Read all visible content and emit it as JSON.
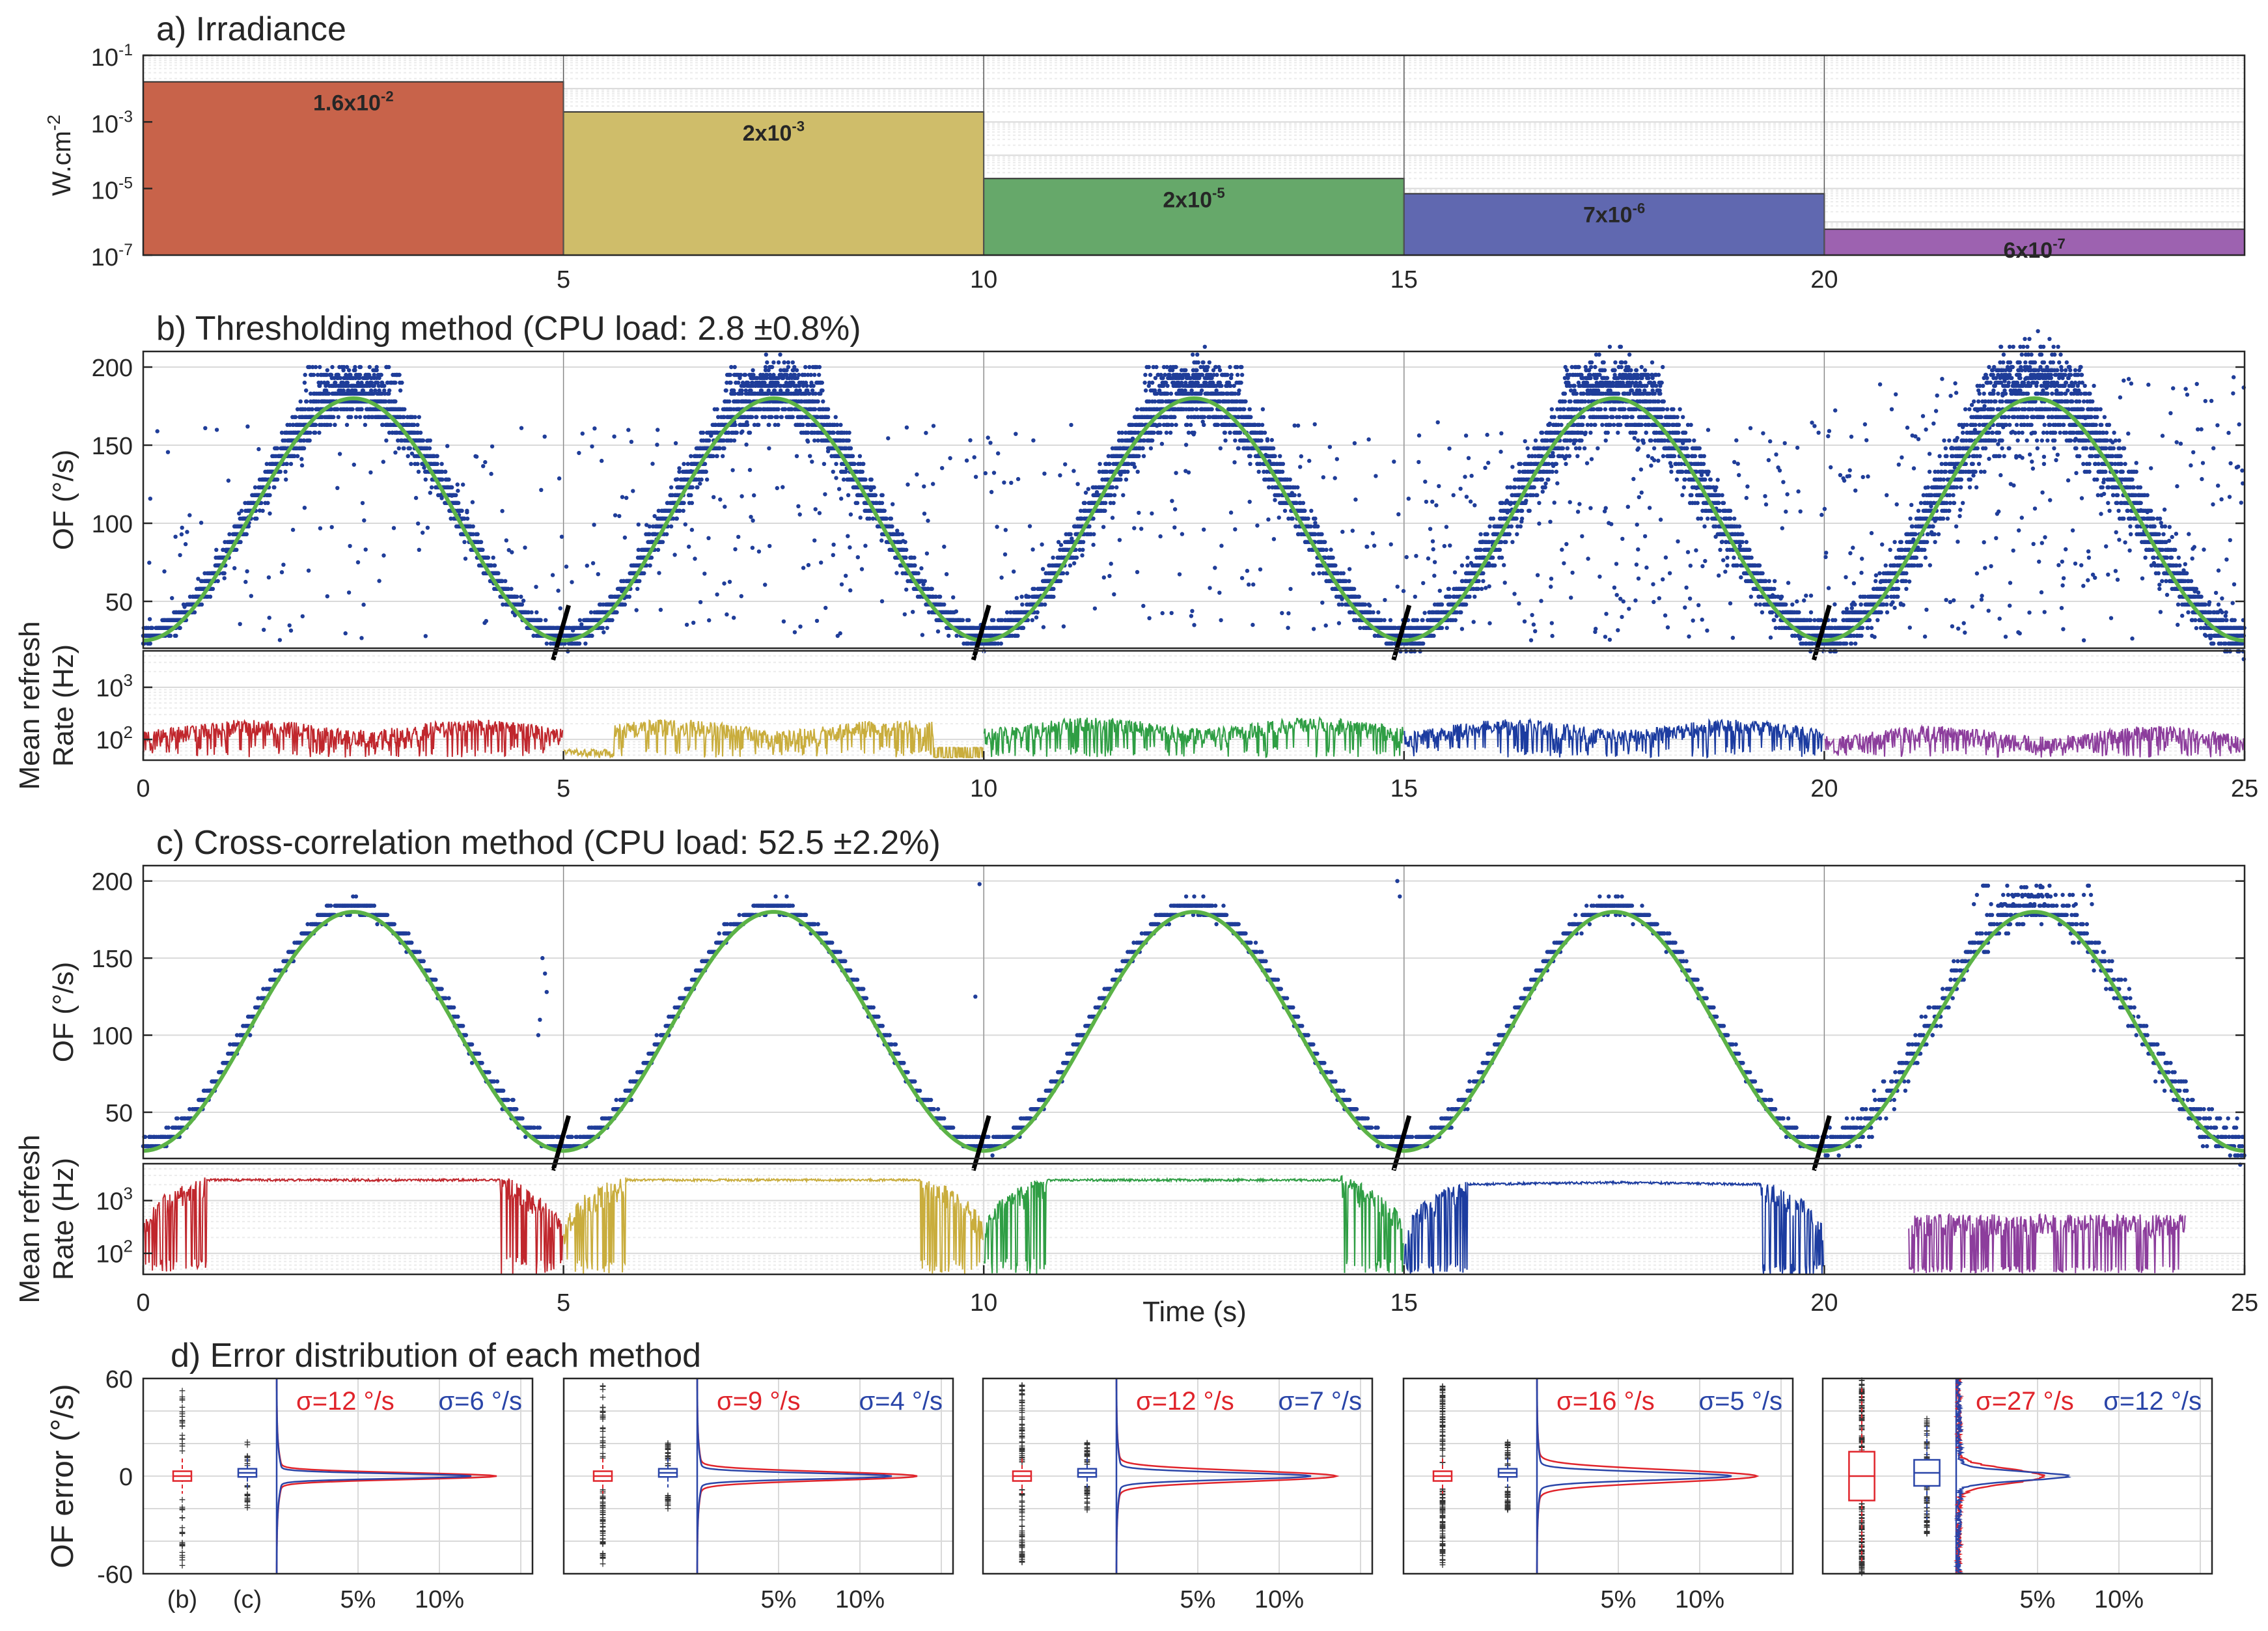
{
  "colors": {
    "axis": "#262626",
    "grid": "#d9d9d9",
    "gridMinor": "#ececec",
    "scatter": "#1f3d99",
    "fit": "#5cb347",
    "slash": "#000000",
    "red": "#e0242b",
    "blue": "#2a45a8",
    "segments": [
      "#c8634a",
      "#cfbd6a",
      "#66a86a",
      "#6068b0",
      "#9d62b0"
    ],
    "rateLines": [
      "#c0272d",
      "#c9ad3d",
      "#2f9e44",
      "#1c3ca0",
      "#8c3d9c"
    ]
  },
  "chart_data": [
    {
      "id": "a",
      "type": "bar",
      "title": "a) Irradiance",
      "ylabel": "W.cm-2",
      "yscale": "log",
      "ylim": [
        1e-07,
        0.1
      ],
      "yticks": [
        "10-7",
        "10-5",
        "10-3",
        "10-1"
      ],
      "xlim": [
        0,
        25
      ],
      "xticks": [
        "5",
        "10",
        "15",
        "20"
      ],
      "segments": [
        {
          "x0": 0,
          "x1": 5,
          "value": 0.016,
          "label": "1.6x10-2"
        },
        {
          "x0": 5,
          "x1": 10,
          "value": 0.002,
          "label": "2x10-3"
        },
        {
          "x0": 10,
          "x1": 15,
          "value": 2e-05,
          "label": "2x10-5"
        },
        {
          "x0": 15,
          "x1": 20,
          "value": 7e-06,
          "label": "7x10-6"
        },
        {
          "x0": 20,
          "x1": 25,
          "value": 6e-07,
          "label": "6x10-7"
        }
      ]
    },
    {
      "id": "b",
      "type": "scatter",
      "title": "b) Thresholding method (CPU load: 2.8 ±0.8%)",
      "ylabel": "OF (°/s)",
      "ylim": [
        20,
        210
      ],
      "yticks": [
        50,
        100,
        150,
        200
      ],
      "xlim": [
        0,
        25
      ],
      "reference_sine": {
        "period": 5,
        "min": 25,
        "max": 180
      },
      "scatter_level": [
        0.3,
        0.45,
        0.55,
        0.75,
        1.0
      ],
      "rate_panel": {
        "ylabel": "Mean refresh Rate (Hz)",
        "yscale": "log",
        "ylim": [
          40,
          5000
        ],
        "yticks": [
          "10²",
          "10³"
        ],
        "approx_rate_hz": [
          120,
          120,
          130,
          120,
          90
        ]
      },
      "xticks": [
        0,
        5,
        10,
        15,
        20,
        25
      ]
    },
    {
      "id": "c",
      "type": "scatter",
      "title": "c) Cross-correlation method (CPU load: 52.5 ±2.2%)",
      "ylabel": "OF (°/s)",
      "ylim": [
        20,
        210
      ],
      "yticks": [
        50,
        100,
        150,
        200
      ],
      "xlim": [
        0,
        25
      ],
      "xlabel": "Time (s)",
      "reference_sine": {
        "period": 5,
        "min": 25,
        "max": 180
      },
      "rate_panel": {
        "ylabel": "Mean refresh Rate (Hz)",
        "yscale": "log",
        "ylim": [
          40,
          5000
        ],
        "yticks": [
          "10²",
          "10³"
        ],
        "approx_peak_rate_hz": [
          2500,
          2500,
          2500,
          2500,
          500
        ]
      },
      "xticks": [
        0,
        5,
        10,
        15,
        20,
        25
      ]
    },
    {
      "id": "d",
      "type": "boxplot+histogram",
      "title": "d) Error distribution of each method",
      "ylabel": "OF error (°/s)",
      "ylim": [
        -60,
        60
      ],
      "yticks": [
        60,
        0,
        -60
      ],
      "box_labels": [
        "(b)",
        "(c)"
      ],
      "hist_ticks": [
        "5%",
        "10%"
      ],
      "panels": [
        {
          "sigma_b": "σ=12 °/s",
          "sigma_c": "σ=6 °/s"
        },
        {
          "sigma_b": "σ=9 °/s",
          "sigma_c": "σ=4 °/s"
        },
        {
          "sigma_b": "σ=12 °/s",
          "sigma_c": "σ=7 °/s"
        },
        {
          "sigma_b": "σ=16 °/s",
          "sigma_c": "σ=5 °/s"
        },
        {
          "sigma_b": "σ=27 °/s",
          "sigma_c": "σ=12 °/s"
        }
      ]
    }
  ],
  "xlabel": "Time (s)"
}
